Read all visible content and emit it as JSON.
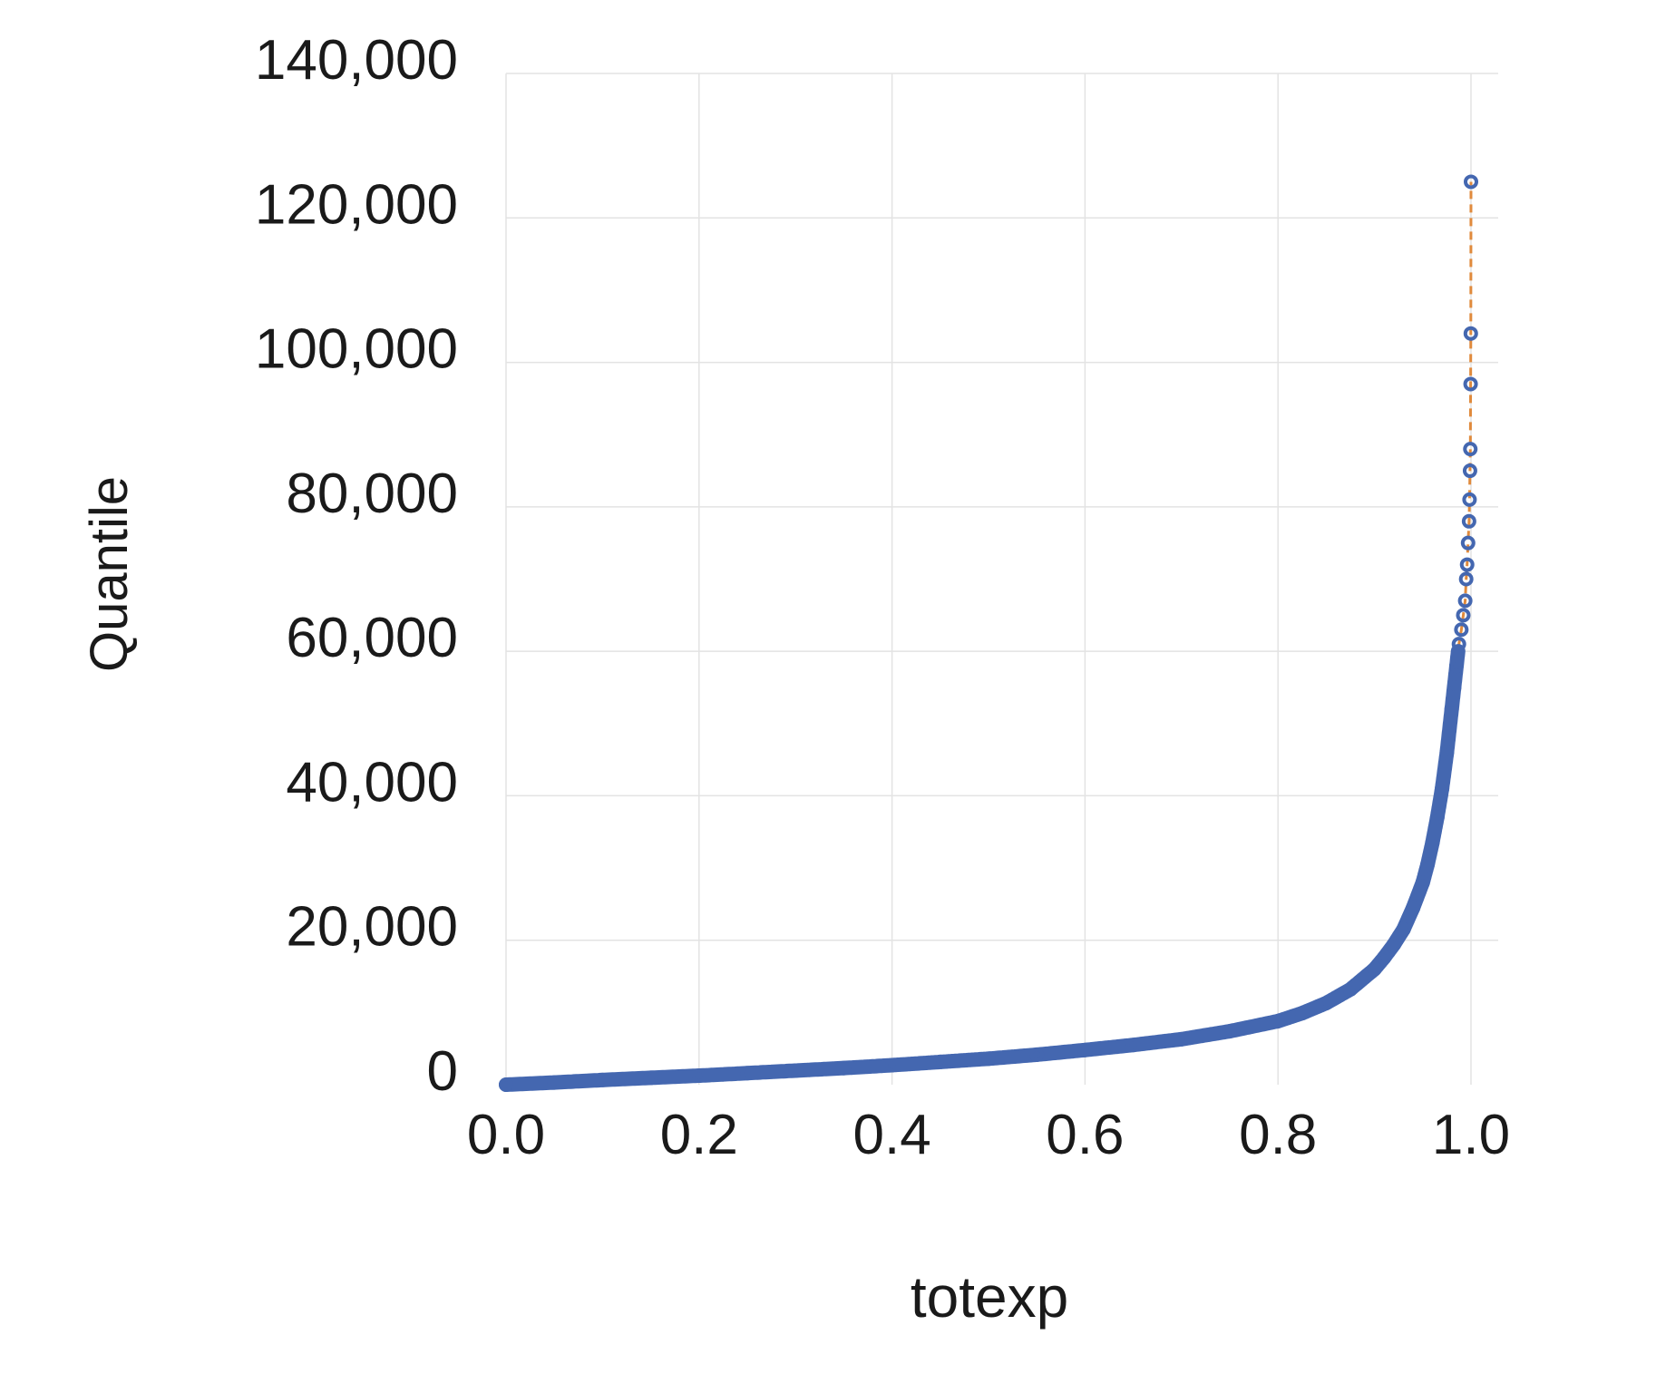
{
  "chart_data": {
    "type": "scatter",
    "title": "",
    "xlabel": "totexp",
    "ylabel": "Quantile",
    "xlim": [
      0,
      1
    ],
    "ylim": [
      0,
      140000
    ],
    "x_ticks": [
      0,
      0.2,
      0.4,
      0.6,
      0.8,
      1.0
    ],
    "x_tick_labels": [
      "0.0",
      "0.2",
      "0.4",
      "0.6",
      "0.8",
      "1.0"
    ],
    "y_ticks": [
      0,
      20000,
      40000,
      60000,
      80000,
      100000,
      120000,
      140000
    ],
    "y_tick_labels": [
      "0",
      "20,000",
      "40,000",
      "60,000",
      "80,000",
      "100,000",
      "120,000",
      "140,000"
    ],
    "grid": true,
    "legend": "none",
    "colors": {
      "points": "#4467b0",
      "reference_line": "#e08a3c",
      "grid": "#e3e3e3"
    },
    "series": [
      {
        "type": "scatter",
        "marker": "open-circle",
        "x": [
          0.0,
          0.05,
          0.1,
          0.15,
          0.2,
          0.25,
          0.3,
          0.35,
          0.4,
          0.45,
          0.5,
          0.55,
          0.6,
          0.65,
          0.7,
          0.75,
          0.8,
          0.825,
          0.85,
          0.875,
          0.9,
          0.91,
          0.92,
          0.93,
          0.94,
          0.95,
          0.955,
          0.96,
          0.965,
          0.97,
          0.975,
          0.98,
          0.9825,
          0.985,
          0.9875,
          0.99,
          0.992,
          0.994,
          0.995,
          0.996,
          0.997,
          0.998,
          0.9985,
          0.999,
          0.9993,
          0.9996,
          0.9998,
          1.0
        ],
        "y": [
          0,
          300,
          650,
          950,
          1250,
          1600,
          1950,
          2300,
          2700,
          3150,
          3600,
          4150,
          4800,
          5500,
          6300,
          7400,
          8800,
          9900,
          11300,
          13200,
          16000,
          17600,
          19400,
          21500,
          24500,
          28000,
          30500,
          33500,
          37000,
          41000,
          46000,
          52000,
          55000,
          58000,
          61000,
          63000,
          65000,
          67000,
          70000,
          72000,
          75000,
          78000,
          81000,
          85000,
          88000,
          97000,
          104000,
          125000
        ]
      },
      {
        "type": "line",
        "style": "dashed",
        "x": [
          0.0,
          0.05,
          0.1,
          0.15,
          0.2,
          0.25,
          0.3,
          0.35,
          0.4,
          0.45,
          0.5,
          0.55,
          0.6,
          0.65,
          0.7,
          0.75,
          0.8,
          0.825,
          0.85,
          0.875,
          0.9,
          0.91,
          0.92,
          0.93,
          0.94,
          0.95,
          0.955,
          0.96,
          0.965,
          0.97,
          0.975,
          0.98,
          0.9825,
          0.985,
          0.9875,
          0.99,
          0.992,
          0.994,
          0.995,
          0.996,
          0.997,
          0.998,
          0.9985,
          0.999,
          0.9993,
          0.9996,
          0.9998,
          1.0
        ],
        "y": [
          0,
          300,
          650,
          950,
          1250,
          1600,
          1950,
          2300,
          2700,
          3150,
          3600,
          4150,
          4800,
          5500,
          6300,
          7400,
          8800,
          9900,
          11300,
          13200,
          16000,
          17600,
          19400,
          21500,
          24500,
          28000,
          30500,
          33500,
          37000,
          41000,
          46000,
          52000,
          55000,
          58000,
          61000,
          63000,
          65000,
          67000,
          70000,
          72000,
          75000,
          78000,
          81000,
          85000,
          88000,
          97000,
          104000,
          125000
        ]
      }
    ]
  }
}
